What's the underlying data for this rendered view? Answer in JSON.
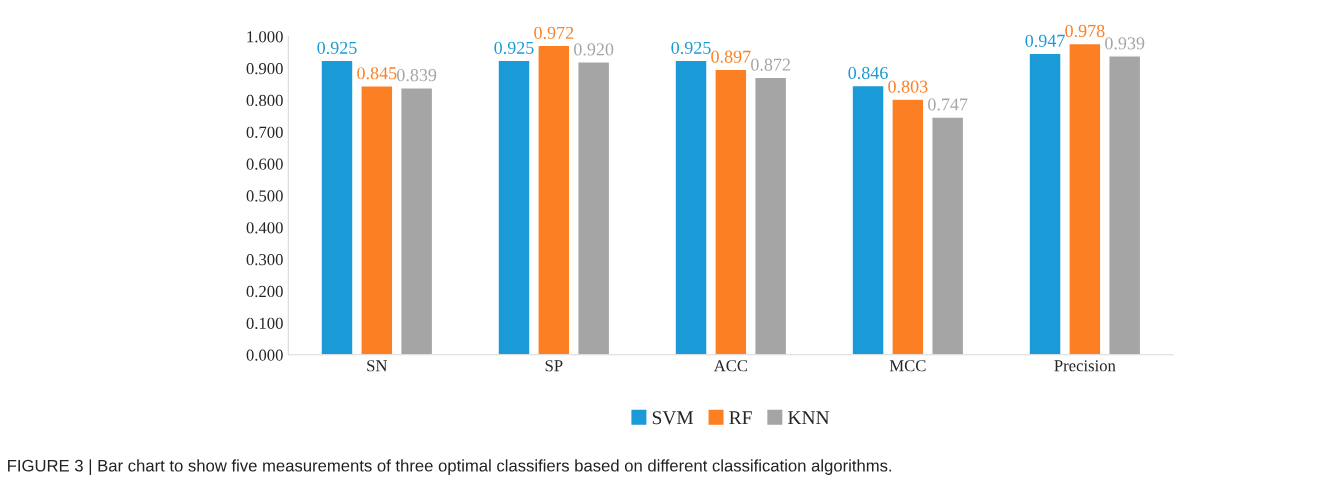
{
  "chart_data": {
    "type": "bar",
    "categories": [
      "SN",
      "SP",
      "ACC",
      "MCC",
      "Precision"
    ],
    "series": [
      {
        "name": "SVM",
        "color": "#1a9ad6",
        "values": [
          0.925,
          0.925,
          0.925,
          0.846,
          0.947
        ],
        "value_labels": [
          "0.925",
          "0.925",
          "0.925",
          "0.846",
          "0.947"
        ]
      },
      {
        "name": "RF",
        "color": "#fd7f23",
        "values": [
          0.845,
          0.972,
          0.897,
          0.803,
          0.978
        ],
        "value_labels": [
          "0.845",
          "0.972",
          "0.897",
          "0.803",
          "0.978"
        ]
      },
      {
        "name": "KNN",
        "color": "#a5a5a5",
        "values": [
          0.839,
          0.92,
          0.872,
          0.747,
          0.939
        ],
        "value_labels": [
          "0.839",
          "0.920",
          "0.872",
          "0.747",
          "0.939"
        ]
      }
    ],
    "ylim": [
      0,
      1
    ],
    "yticks": [
      {
        "value": 0,
        "label": "0.000"
      },
      {
        "value": 0.1,
        "label": "0.100"
      },
      {
        "value": 0.2,
        "label": "0.200"
      },
      {
        "value": 0.3,
        "label": "0.300"
      },
      {
        "value": 0.4,
        "label": "0.400"
      },
      {
        "value": 0.5,
        "label": "0.500"
      },
      {
        "value": 0.6,
        "label": "0.600"
      },
      {
        "value": 0.7,
        "label": "0.700"
      },
      {
        "value": 0.8,
        "label": "0.800"
      },
      {
        "value": 0.9,
        "label": "0.900"
      },
      {
        "value": 1,
        "label": "1.000"
      }
    ],
    "grid": false,
    "legend": "bottom",
    "annotations": [
      "FIGURE 3 | Bar chart to show five measurements of three optimal classifiers based on different classification algorithms."
    ]
  }
}
